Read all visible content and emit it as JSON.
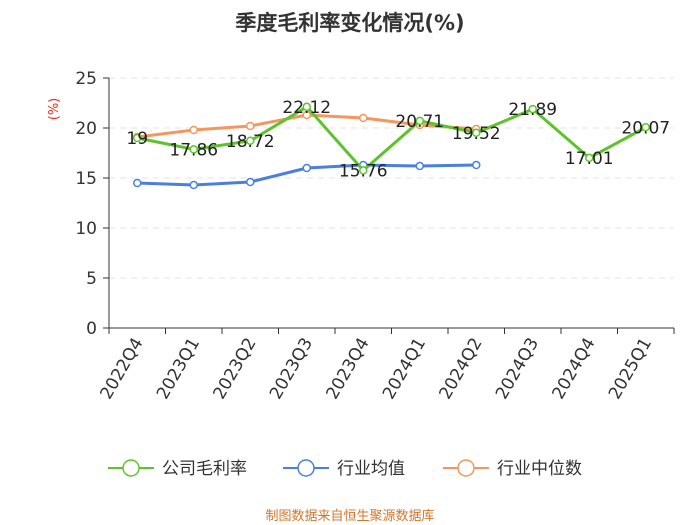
{
  "chart_data": {
    "type": "line",
    "title": "季度毛利率变化情况(%)",
    "ylabel": "(%)",
    "xlabel": "",
    "ylim": [
      0,
      25
    ],
    "yticks": [
      0,
      5,
      10,
      15,
      20,
      25
    ],
    "grid": true,
    "legend_position": "bottom",
    "categories": [
      "2022Q4",
      "2023Q1",
      "2023Q2",
      "2023Q3",
      "2023Q4",
      "2024Q1",
      "2024Q2",
      "2024Q3",
      "2024Q4",
      "2025Q1"
    ],
    "series": [
      {
        "name": "公司毛利率",
        "color": "#5cc42a",
        "values": [
          19,
          17.86,
          18.72,
          22.12,
          15.76,
          20.71,
          19.52,
          21.89,
          17.01,
          20.07
        ],
        "value_labels": [
          "19",
          "17.86",
          "18.72",
          "22.12",
          "15.76",
          "20.71",
          "19.52",
          "21.89",
          "17.01",
          "20.07"
        ]
      },
      {
        "name": "行业均值",
        "color": "#4a7fde",
        "values": [
          14.5,
          14.3,
          14.6,
          16.0,
          16.3,
          16.2,
          16.3,
          null,
          null,
          null
        ]
      },
      {
        "name": "行业中位数",
        "color": "#f5965f",
        "values": [
          19.1,
          19.8,
          20.2,
          21.3,
          21.0,
          20.3,
          19.9,
          null,
          null,
          null
        ]
      }
    ]
  },
  "source_note": "制图数据来自恒生聚源数据库"
}
